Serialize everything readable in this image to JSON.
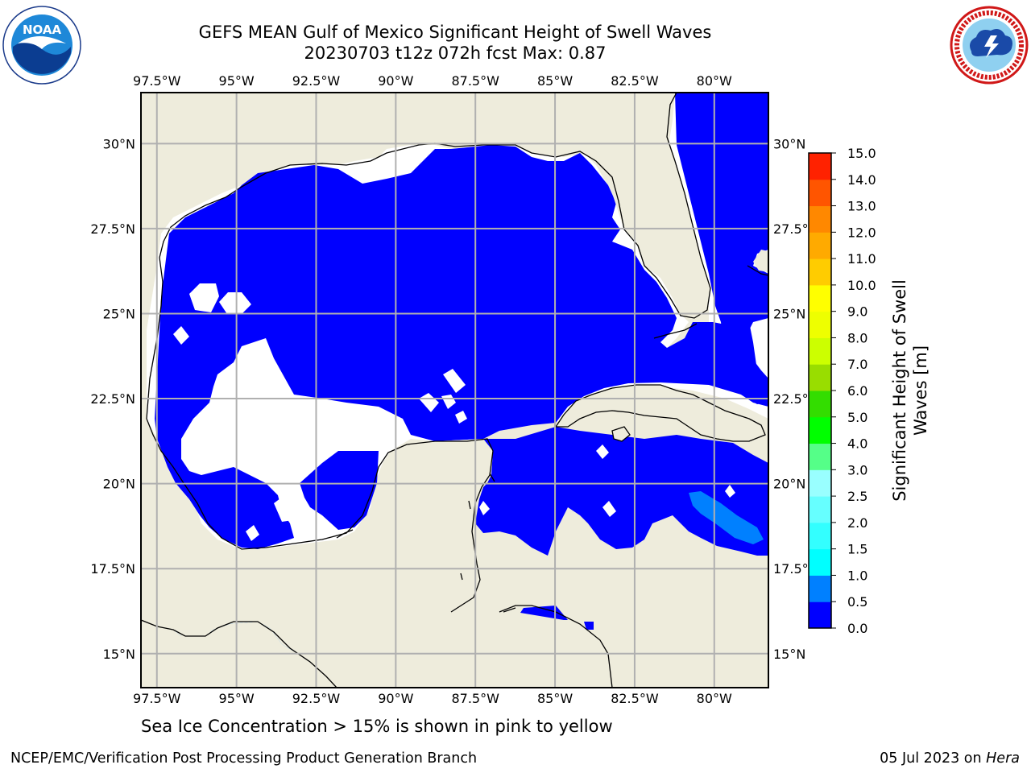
{
  "header": {
    "title": "GEFS MEAN Gulf of Mexico Significant Height of Swell Waves",
    "subtitle": "20230703 t12z 072h fcst   Max: 0.87"
  },
  "logos": {
    "left": {
      "text": "NOAA",
      "icon": "noaa-logo"
    },
    "right": {
      "icon": "national-weather-service-logo"
    }
  },
  "map": {
    "lon_labels": [
      "97.5°W",
      "95°W",
      "92.5°W",
      "90°W",
      "87.5°W",
      "85°W",
      "82.5°W",
      "80°W"
    ],
    "lon_values": [
      -97.5,
      -95,
      -92.5,
      -90,
      -87.5,
      -85,
      -82.5,
      -80
    ],
    "lat_labels": [
      "30°N",
      "27.5°N",
      "25°N",
      "22.5°N",
      "20°N",
      "17.5°N",
      "15°N"
    ],
    "lat_values": [
      30,
      27.5,
      25,
      22.5,
      20,
      17.5,
      15
    ],
    "lon_range": [
      -98,
      -78.3
    ],
    "lat_range": [
      14,
      31.5
    ],
    "colors": {
      "land": "#eeecdc",
      "water_low": "#0000ff",
      "water_mid": "#0080ff",
      "no_data": "#ffffff",
      "grid": "#b0b0b0"
    }
  },
  "colorbar": {
    "label": "Significant Height of Swell Waves [m]",
    "label_lines": [
      "Significant Height of Swell",
      "Waves [m]"
    ],
    "ticks": [
      "0.0",
      "0.5",
      "1.0",
      "1.5",
      "2.0",
      "2.5",
      "3.0",
      "4.0",
      "5.0",
      "6.0",
      "7.0",
      "8.0",
      "9.0",
      "10.0",
      "11.0",
      "12.0",
      "13.0",
      "14.0",
      "15.0"
    ],
    "bins": [
      {
        "from": 0,
        "to": 0.5,
        "color": "#0000ff"
      },
      {
        "from": 0.5,
        "to": 1.0,
        "color": "#0080ff"
      },
      {
        "from": 1.0,
        "to": 1.5,
        "color": "#00ffff"
      },
      {
        "from": 1.5,
        "to": 2.0,
        "color": "#33ffff"
      },
      {
        "from": 2.0,
        "to": 2.5,
        "color": "#66ffff"
      },
      {
        "from": 2.5,
        "to": 3.0,
        "color": "#99ffff"
      },
      {
        "from": 3.0,
        "to": 4.0,
        "color": "#55ff88"
      },
      {
        "from": 4.0,
        "to": 5.0,
        "color": "#00ff00"
      },
      {
        "from": 5.0,
        "to": 6.0,
        "color": "#33dd00"
      },
      {
        "from": 6.0,
        "to": 7.0,
        "color": "#99dd00"
      },
      {
        "from": 7.0,
        "to": 8.0,
        "color": "#ccff00"
      },
      {
        "from": 8.0,
        "to": 9.0,
        "color": "#eeff00"
      },
      {
        "from": 9.0,
        "to": 10.0,
        "color": "#ffff00"
      },
      {
        "from": 10.0,
        "to": 11.0,
        "color": "#ffcc00"
      },
      {
        "from": 11.0,
        "to": 12.0,
        "color": "#ffaa00"
      },
      {
        "from": 12.0,
        "to": 13.0,
        "color": "#ff8800"
      },
      {
        "from": 13.0,
        "to": 14.0,
        "color": "#ff5500"
      },
      {
        "from": 14.0,
        "to": 15.0,
        "color": "#ff2200"
      }
    ]
  },
  "note": "Sea Ice Concentration > 15% is shown in pink to yellow",
  "footer": {
    "left": "NCEP/EMC/Verification Post Processing Product Generation Branch",
    "right_date": "05 Jul 2023 on ",
    "right_host": "Hera"
  }
}
